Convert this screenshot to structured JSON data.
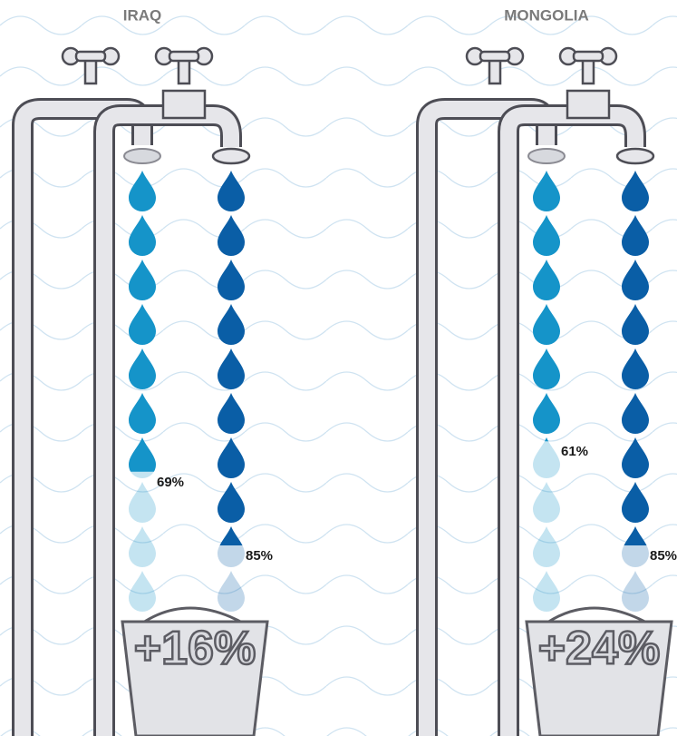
{
  "chart_data": [
    {
      "type": "drops",
      "title": "IRAQ",
      "ylim": [
        0,
        100
      ],
      "values": [
        69,
        85
      ],
      "value_labels": [
        "69%",
        "85%"
      ],
      "colors": [
        "#1594c9",
        "#0a5ea6"
      ],
      "annotation": "+16%"
    },
    {
      "type": "drops",
      "title": "MONGOLIA",
      "ylim": [
        0,
        100
      ],
      "values": [
        61,
        85
      ],
      "value_labels": [
        "61%",
        "85%"
      ],
      "colors": [
        "#1594c9",
        "#0a5ea6"
      ],
      "annotation": "+24%"
    }
  ]
}
